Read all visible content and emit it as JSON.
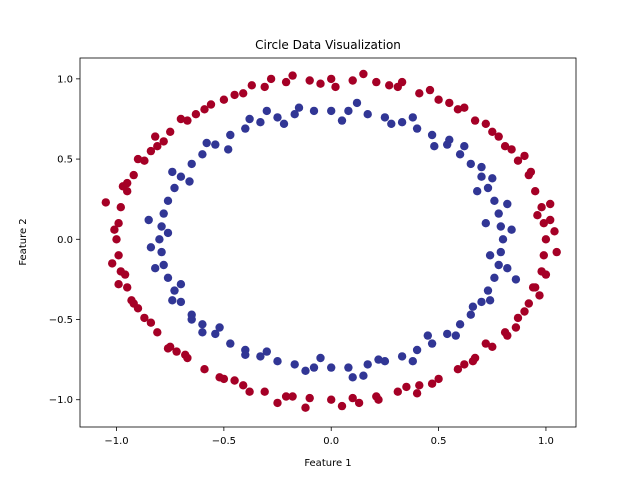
{
  "chart_data": {
    "type": "scatter",
    "title": "Circle Data Visualization",
    "xlabel": "Feature 1",
    "ylabel": "Feature 2",
    "xlim": [
      -1.17,
      1.14
    ],
    "ylim": [
      -1.17,
      1.13
    ],
    "x_ticks": [
      -1.0,
      -0.5,
      0.0,
      0.5,
      1.0
    ],
    "x_tick_labels": [
      "−1.0",
      "−0.5",
      "0.0",
      "0.5",
      "1.0"
    ],
    "y_ticks": [
      -1.0,
      -0.5,
      0.0,
      0.5,
      1.0
    ],
    "y_tick_labels": [
      "−1.0",
      "−0.5",
      "0.0",
      "0.5",
      "1.0"
    ],
    "grid": false,
    "legend": "none",
    "series": [
      {
        "color": "#a50026",
        "points": [
          [
            1.0,
            0.0
          ],
          [
            0.99,
            0.1
          ],
          [
            0.98,
            0.2
          ],
          [
            0.95,
            0.3
          ],
          [
            0.92,
            0.4
          ],
          [
            0.87,
            0.49
          ],
          [
            0.81,
            0.58
          ],
          [
            0.75,
            0.67
          ],
          [
            0.67,
            0.74
          ],
          [
            0.59,
            0.81
          ],
          [
            0.5,
            0.87
          ],
          [
            0.41,
            0.91
          ],
          [
            0.31,
            0.95
          ],
          [
            0.21,
            0.98
          ],
          [
            0.1,
            0.99
          ],
          [
            0.0,
            1.0
          ],
          [
            -0.1,
            0.99
          ],
          [
            -0.21,
            0.98
          ],
          [
            -0.31,
            0.95
          ],
          [
            -0.41,
            0.91
          ],
          [
            -0.5,
            0.87
          ],
          [
            -0.59,
            0.81
          ],
          [
            -0.67,
            0.74
          ],
          [
            -0.75,
            0.67
          ],
          [
            -0.81,
            0.58
          ],
          [
            -0.87,
            0.49
          ],
          [
            -0.92,
            0.4
          ],
          [
            -0.95,
            0.3
          ],
          [
            -0.98,
            0.2
          ],
          [
            -0.99,
            0.1
          ],
          [
            -1.0,
            0.0
          ],
          [
            -0.99,
            -0.1
          ],
          [
            -0.98,
            -0.2
          ],
          [
            -0.95,
            -0.3
          ],
          [
            -0.92,
            -0.4
          ],
          [
            -0.87,
            -0.49
          ],
          [
            -0.81,
            -0.58
          ],
          [
            -0.75,
            -0.67
          ],
          [
            -0.67,
            -0.74
          ],
          [
            -0.59,
            -0.81
          ],
          [
            -0.5,
            -0.87
          ],
          [
            -0.41,
            -0.91
          ],
          [
            -0.31,
            -0.95
          ],
          [
            -0.21,
            -0.98
          ],
          [
            -0.1,
            -0.99
          ],
          [
            0.0,
            -1.0
          ],
          [
            0.1,
            -0.99
          ],
          [
            0.21,
            -0.98
          ],
          [
            0.31,
            -0.95
          ],
          [
            0.41,
            -0.91
          ],
          [
            0.5,
            -0.87
          ],
          [
            0.59,
            -0.81
          ],
          [
            0.67,
            -0.74
          ],
          [
            0.75,
            -0.67
          ],
          [
            0.81,
            -0.58
          ],
          [
            0.87,
            -0.49
          ],
          [
            0.92,
            -0.4
          ],
          [
            0.95,
            -0.3
          ],
          [
            0.98,
            -0.2
          ],
          [
            0.99,
            -0.1
          ],
          [
            1.04,
            0.05
          ],
          [
            1.02,
            0.22
          ],
          [
            0.9,
            0.52
          ],
          [
            0.72,
            0.72
          ],
          [
            0.46,
            0.93
          ],
          [
            0.15,
            1.03
          ],
          [
            -0.18,
            1.02
          ],
          [
            -0.45,
            0.9
          ],
          [
            -0.7,
            0.75
          ],
          [
            -0.9,
            0.5
          ],
          [
            -1.05,
            0.23
          ],
          [
            -1.02,
            -0.15
          ],
          [
            -0.93,
            -0.38
          ],
          [
            -0.76,
            -0.68
          ],
          [
            -0.52,
            -0.86
          ],
          [
            -0.25,
            -1.02
          ],
          [
            0.05,
            -1.04
          ],
          [
            0.35,
            -0.92
          ],
          [
            0.62,
            -0.78
          ],
          [
            0.86,
            -0.55
          ],
          [
            0.97,
            -0.35
          ],
          [
            1.05,
            -0.08
          ],
          [
            0.93,
            0.42
          ],
          [
            0.62,
            0.82
          ],
          [
            0.27,
            0.96
          ],
          [
            -0.05,
            0.97
          ],
          [
            -0.37,
            0.96
          ],
          [
            -0.63,
            0.78
          ],
          [
            -0.84,
            0.55
          ],
          [
            -0.97,
            0.33
          ],
          [
            -0.96,
            -0.22
          ],
          [
            -0.84,
            -0.52
          ],
          [
            -0.68,
            -0.72
          ],
          [
            -0.38,
            -0.95
          ],
          [
            -0.12,
            -1.05
          ],
          [
            0.22,
            -1.0
          ],
          [
            0.47,
            -0.9
          ],
          [
            0.72,
            -0.65
          ],
          [
            0.9,
            -0.45
          ],
          [
            1.0,
            -0.22
          ],
          [
            0.96,
            0.15
          ],
          [
            0.84,
            0.56
          ],
          [
            0.55,
            0.85
          ],
          [
            0.33,
            0.98
          ],
          [
            0.02,
            0.95
          ],
          [
            -0.28,
            1.0
          ],
          [
            -0.56,
            0.84
          ],
          [
            -0.78,
            0.61
          ],
          [
            -0.95,
            0.35
          ],
          [
            -1.01,
            0.06
          ],
          [
            -0.9,
            -0.43
          ],
          [
            -0.72,
            -0.7
          ],
          [
            -0.45,
            -0.88
          ],
          [
            -0.18,
            -0.98
          ],
          [
            0.13,
            -1.02
          ],
          [
            0.4,
            -0.96
          ],
          [
            0.66,
            -0.76
          ],
          [
            0.82,
            -0.6
          ],
          [
            0.94,
            -0.3
          ],
          [
            1.02,
            0.12
          ],
          [
            0.78,
            0.64
          ],
          [
            -0.82,
            0.64
          ],
          [
            -0.99,
            -0.28
          ]
        ]
      },
      {
        "color": "#313695",
        "points": [
          [
            0.8,
            0.0
          ],
          [
            0.79,
            0.08
          ],
          [
            0.78,
            0.16
          ],
          [
            0.76,
            0.24
          ],
          [
            0.73,
            0.32
          ],
          [
            0.7,
            0.39
          ],
          [
            0.65,
            0.47
          ],
          [
            0.6,
            0.53
          ],
          [
            0.54,
            0.59
          ],
          [
            0.47,
            0.65
          ],
          [
            0.4,
            0.69
          ],
          [
            0.33,
            0.73
          ],
          [
            0.25,
            0.76
          ],
          [
            0.17,
            0.78
          ],
          [
            0.08,
            0.8
          ],
          [
            0.0,
            0.8
          ],
          [
            -0.08,
            0.8
          ],
          [
            -0.17,
            0.78
          ],
          [
            -0.25,
            0.76
          ],
          [
            -0.33,
            0.73
          ],
          [
            -0.4,
            0.69
          ],
          [
            -0.47,
            0.65
          ],
          [
            -0.54,
            0.59
          ],
          [
            -0.6,
            0.53
          ],
          [
            -0.65,
            0.47
          ],
          [
            -0.7,
            0.39
          ],
          [
            -0.73,
            0.32
          ],
          [
            -0.76,
            0.24
          ],
          [
            -0.78,
            0.16
          ],
          [
            -0.79,
            0.08
          ],
          [
            -0.8,
            0.0
          ],
          [
            -0.79,
            -0.08
          ],
          [
            -0.78,
            -0.16
          ],
          [
            -0.76,
            -0.24
          ],
          [
            -0.73,
            -0.32
          ],
          [
            -0.7,
            -0.39
          ],
          [
            -0.65,
            -0.47
          ],
          [
            -0.6,
            -0.53
          ],
          [
            -0.54,
            -0.59
          ],
          [
            -0.47,
            -0.65
          ],
          [
            -0.4,
            -0.69
          ],
          [
            -0.33,
            -0.73
          ],
          [
            -0.25,
            -0.76
          ],
          [
            -0.17,
            -0.78
          ],
          [
            -0.08,
            -0.8
          ],
          [
            0.0,
            -0.8
          ],
          [
            0.08,
            -0.8
          ],
          [
            0.17,
            -0.78
          ],
          [
            0.25,
            -0.76
          ],
          [
            0.33,
            -0.73
          ],
          [
            0.4,
            -0.69
          ],
          [
            0.47,
            -0.65
          ],
          [
            0.54,
            -0.59
          ],
          [
            0.6,
            -0.53
          ],
          [
            0.65,
            -0.47
          ],
          [
            0.7,
            -0.39
          ],
          [
            0.73,
            -0.32
          ],
          [
            0.76,
            -0.24
          ],
          [
            0.78,
            -0.16
          ],
          [
            0.79,
            -0.08
          ],
          [
            0.84,
            0.06
          ],
          [
            0.82,
            0.22
          ],
          [
            0.7,
            0.45
          ],
          [
            0.55,
            0.62
          ],
          [
            0.38,
            0.76
          ],
          [
            0.12,
            0.85
          ],
          [
            -0.15,
            0.82
          ],
          [
            -0.38,
            0.75
          ],
          [
            -0.58,
            0.6
          ],
          [
            -0.74,
            0.42
          ],
          [
            -0.85,
            0.12
          ],
          [
            -0.82,
            -0.18
          ],
          [
            -0.74,
            -0.38
          ],
          [
            -0.6,
            -0.58
          ],
          [
            -0.4,
            -0.72
          ],
          [
            -0.12,
            -0.82
          ],
          [
            0.15,
            -0.85
          ],
          [
            0.38,
            -0.76
          ],
          [
            0.58,
            -0.6
          ],
          [
            0.74,
            -0.38
          ],
          [
            0.82,
            -0.18
          ],
          [
            0.72,
            0.1
          ],
          [
            0.68,
            0.3
          ],
          [
            0.48,
            0.58
          ],
          [
            0.28,
            0.72
          ],
          [
            0.05,
            0.74
          ],
          [
            -0.22,
            0.72
          ],
          [
            -0.48,
            0.56
          ],
          [
            -0.66,
            0.36
          ],
          [
            -0.76,
            0.04
          ],
          [
            -0.7,
            -0.28
          ],
          [
            -0.52,
            -0.55
          ],
          [
            -0.3,
            -0.7
          ],
          [
            -0.05,
            -0.74
          ],
          [
            0.22,
            -0.75
          ],
          [
            0.45,
            -0.6
          ],
          [
            0.66,
            -0.42
          ],
          [
            0.74,
            -0.1
          ],
          [
            0.86,
            -0.25
          ],
          [
            0.75,
            0.38
          ],
          [
            0.62,
            0.58
          ],
          [
            -0.65,
            -0.5
          ],
          [
            -0.84,
            -0.05
          ],
          [
            0.1,
            -0.86
          ],
          [
            -0.3,
            0.8
          ]
        ]
      }
    ]
  }
}
